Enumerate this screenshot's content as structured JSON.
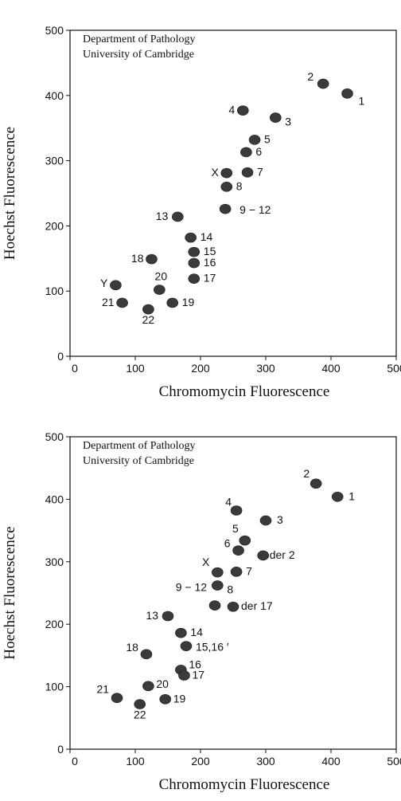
{
  "chart_data": [
    {
      "type": "scatter",
      "institution": [
        "Department of Pathology",
        "University of Cambridge"
      ],
      "xlabel": "Chromomycin Fluorescence",
      "ylabel": "Hoechst Fluorescence",
      "xlim": [
        0,
        500
      ],
      "ylim": [
        0,
        500
      ],
      "xticks": [
        "0",
        "100",
        "200",
        "300",
        "400",
        "500"
      ],
      "yticks": [
        "0",
        "100",
        "200",
        "300",
        "400",
        "500"
      ],
      "grid": false,
      "points": [
        {
          "label": "1",
          "x": 425,
          "y": 403
        },
        {
          "label": "2",
          "x": 388,
          "y": 418
        },
        {
          "label": "3",
          "x": 315,
          "y": 366
        },
        {
          "label": "4",
          "x": 265,
          "y": 377
        },
        {
          "label": "5",
          "x": 283,
          "y": 332
        },
        {
          "label": "6",
          "x": 270,
          "y": 313
        },
        {
          "label": "7",
          "x": 272,
          "y": 282
        },
        {
          "label": "X",
          "x": 240,
          "y": 281
        },
        {
          "label": "8",
          "x": 240,
          "y": 260
        },
        {
          "label": "9 − 12",
          "x": 238,
          "y": 226
        },
        {
          "label": "13",
          "x": 165,
          "y": 214
        },
        {
          "label": "14",
          "x": 185,
          "y": 182
        },
        {
          "label": "15",
          "x": 190,
          "y": 160
        },
        {
          "label": "16",
          "x": 190,
          "y": 143
        },
        {
          "label": "17",
          "x": 190,
          "y": 119
        },
        {
          "label": "18",
          "x": 125,
          "y": 149
        },
        {
          "label": "20",
          "x": 137,
          "y": 102
        },
        {
          "label": "Y",
          "x": 70,
          "y": 109
        },
        {
          "label": "21",
          "x": 80,
          "y": 82
        },
        {
          "label": "22",
          "x": 120,
          "y": 72
        },
        {
          "label": "19",
          "x": 157,
          "y": 82
        }
      ]
    },
    {
      "type": "scatter",
      "institution": [
        "Department of Pathology",
        "University of Cambridge"
      ],
      "xlabel": "Chromomycin Fluorescence",
      "ylabel": "Hoechst Fluorescence",
      "xlim": [
        0,
        500
      ],
      "ylim": [
        0,
        500
      ],
      "xticks": [
        "0",
        "100",
        "200",
        "300",
        "400",
        "500"
      ],
      "yticks": [
        "0",
        "100",
        "200",
        "300",
        "400",
        "500"
      ],
      "grid": false,
      "points": [
        {
          "label": "1",
          "x": 410,
          "y": 404
        },
        {
          "label": "2",
          "x": 377,
          "y": 425
        },
        {
          "label": "3",
          "x": 300,
          "y": 366
        },
        {
          "label": "4",
          "x": 255,
          "y": 382
        },
        {
          "label": "5",
          "x": 268,
          "y": 334
        },
        {
          "label": "6",
          "x": 258,
          "y": 318
        },
        {
          "label": "der 2",
          "x": 296,
          "y": 310
        },
        {
          "label": "7",
          "x": 255,
          "y": 284
        },
        {
          "label": "X",
          "x": 226,
          "y": 283
        },
        {
          "label": "8",
          "x": 226,
          "y": 262
        },
        {
          "label": "9 − 12",
          "x": 222,
          "y": 230
        },
        {
          "label": "der 17",
          "x": 250,
          "y": 228
        },
        {
          "label": "13",
          "x": 150,
          "y": 213
        },
        {
          "label": "14",
          "x": 170,
          "y": 186
        },
        {
          "label": "15,16 ′",
          "x": 178,
          "y": 165
        },
        {
          "label": "18",
          "x": 117,
          "y": 152
        },
        {
          "label": "16",
          "x": 170,
          "y": 127
        },
        {
          "label": "17",
          "x": 175,
          "y": 118
        },
        {
          "label": "20",
          "x": 120,
          "y": 101
        },
        {
          "label": "21",
          "x": 72,
          "y": 82
        },
        {
          "label": "22",
          "x": 107,
          "y": 72
        },
        {
          "label": "19",
          "x": 146,
          "y": 80
        }
      ]
    }
  ]
}
